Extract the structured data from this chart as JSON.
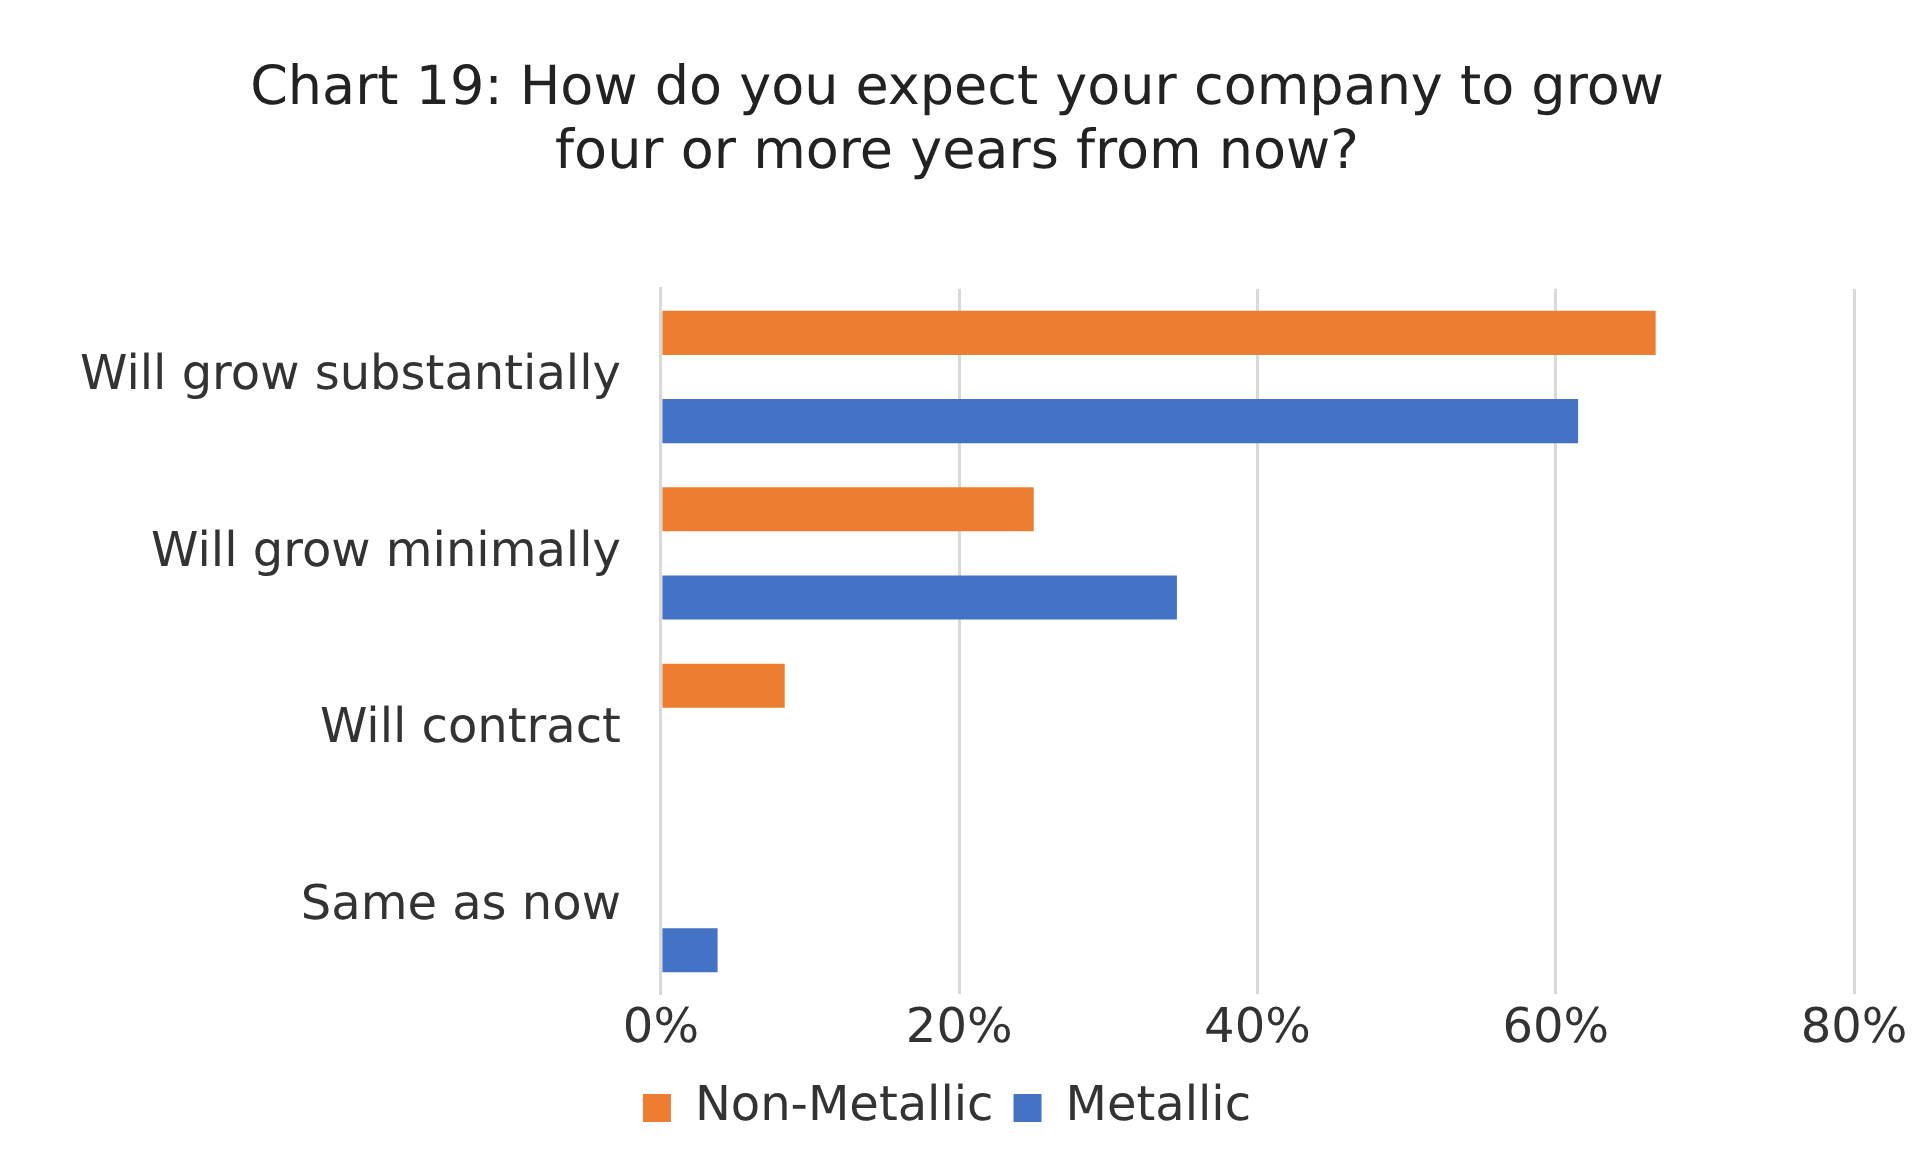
{
  "chart_data": {
    "type": "bar",
    "orientation": "horizontal",
    "title": "Chart 19: How do you expect your company to grow four or more years from now?",
    "categories": [
      "Will grow substantially",
      "Will grow minimally",
      "Will contract",
      "Same as now"
    ],
    "series": [
      {
        "name": "Non-Metallic",
        "color": "#ed7d31",
        "values": [
          66.7,
          25,
          8.3,
          null
        ]
      },
      {
        "name": "Metallic",
        "color": "#4472c4",
        "values": [
          61.5,
          34.6,
          null,
          3.8
        ]
      }
    ],
    "xlim": [
      0,
      80
    ],
    "xticks": [
      {
        "value": 0,
        "label": "0%"
      },
      {
        "value": 20,
        "label": "20%"
      },
      {
        "value": 40,
        "label": "40%"
      },
      {
        "value": 60,
        "label": "60%"
      },
      {
        "value": 80,
        "label": "80%"
      }
    ],
    "grid": "x",
    "legend": "bottom"
  }
}
